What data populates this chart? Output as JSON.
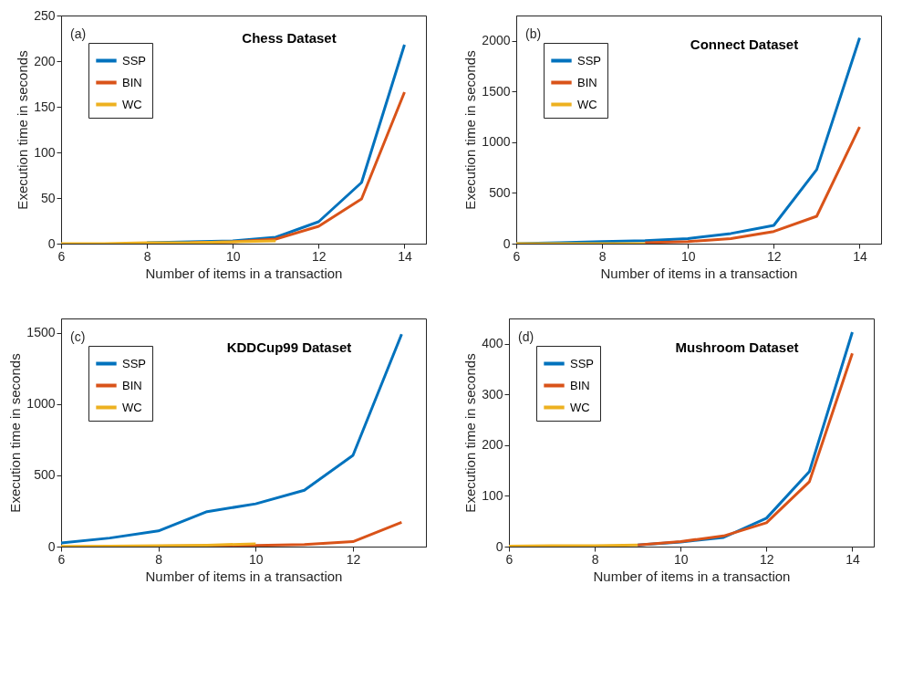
{
  "chart_data": [
    {
      "type": "line",
      "title": "Chess Dataset",
      "annotations": [
        "(a)"
      ],
      "xlabel": "Number of items in a transaction",
      "ylabel": "Execution time in seconds",
      "xlim": [
        6,
        14.5
      ],
      "xticks": [
        6,
        8,
        10,
        12,
        14
      ],
      "ylim": [
        0,
        250
      ],
      "yticks": [
        0,
        50,
        100,
        150,
        200,
        250
      ],
      "legend": "top left",
      "series": [
        {
          "name": "SSP",
          "color": "#0072bd",
          "x": [
            8,
            9,
            10,
            11,
            12,
            13,
            14
          ],
          "values": [
            1,
            2,
            3,
            7,
            24,
            67,
            218
          ]
        },
        {
          "name": "BIN",
          "color": "#d95319",
          "x": [
            9,
            10,
            11,
            12,
            13,
            14
          ],
          "values": [
            1,
            2,
            5,
            19,
            49,
            166
          ]
        },
        {
          "name": "WC",
          "color": "#edb120",
          "x": [
            6,
            7,
            8,
            9,
            10,
            11
          ],
          "values": [
            0,
            0,
            1,
            1,
            2,
            3
          ]
        }
      ]
    },
    {
      "type": "line",
      "title": "Connect Dataset",
      "annotations": [
        "(b)"
      ],
      "xlabel": "Number of items in a transaction",
      "ylabel": "Execution time in seconds",
      "xlim": [
        6,
        14.5
      ],
      "xticks": [
        6,
        8,
        10,
        12,
        14
      ],
      "ylim": [
        0,
        2250
      ],
      "yticks": [
        0,
        500,
        1000,
        1500,
        2000
      ],
      "legend": "top left",
      "series": [
        {
          "name": "SSP",
          "color": "#0072bd",
          "x": [
            6,
            7,
            8,
            9,
            10,
            11,
            12,
            13,
            14
          ],
          "values": [
            0,
            10,
            20,
            30,
            50,
            100,
            180,
            730,
            2030
          ]
        },
        {
          "name": "BIN",
          "color": "#d95319",
          "x": [
            9,
            10,
            11,
            12,
            13,
            14
          ],
          "values": [
            10,
            20,
            50,
            120,
            270,
            1150
          ]
        },
        {
          "name": "WC",
          "color": "#edb120",
          "x": [
            6,
            7,
            8,
            9
          ],
          "values": [
            0,
            0,
            0,
            0
          ]
        }
      ]
    },
    {
      "type": "line",
      "title": "KDDCup99 Dataset",
      "annotations": [
        "(c)"
      ],
      "xlabel": "Number of items in a transaction",
      "ylabel": "Execution time in seconds",
      "xlim": [
        6,
        13.5
      ],
      "xticks": [
        6,
        8,
        10,
        12
      ],
      "ylim": [
        0,
        1600
      ],
      "yticks": [
        0,
        500,
        1000,
        1500
      ],
      "legend": "top left",
      "series": [
        {
          "name": "SSP",
          "color": "#0072bd",
          "x": [
            6,
            7,
            8,
            9,
            10,
            11,
            12,
            13
          ],
          "values": [
            25,
            60,
            110,
            245,
            300,
            395,
            640,
            1490
          ]
        },
        {
          "name": "BIN",
          "color": "#d95319",
          "x": [
            8,
            9,
            10,
            11,
            12,
            13
          ],
          "values": [
            4,
            5,
            8,
            15,
            35,
            170
          ]
        },
        {
          "name": "WC",
          "color": "#edb120",
          "x": [
            6,
            7,
            8,
            9,
            10
          ],
          "values": [
            2,
            4,
            6,
            10,
            20
          ]
        }
      ]
    },
    {
      "type": "line",
      "title": "Mushroom Dataset",
      "annotations": [
        "(d)"
      ],
      "xlabel": "Number of items in a transaction",
      "ylabel": "Execution time in seconds",
      "xlim": [
        6,
        14.5
      ],
      "xticks": [
        6,
        8,
        10,
        12,
        14
      ],
      "ylim": [
        0,
        450
      ],
      "yticks": [
        0,
        100,
        200,
        300,
        400
      ],
      "legend": "top left",
      "series": [
        {
          "name": "SSP",
          "color": "#0072bd",
          "x": [
            9,
            10,
            11,
            12,
            13,
            14
          ],
          "values": [
            3,
            9,
            18,
            56,
            148,
            423
          ]
        },
        {
          "name": "BIN",
          "color": "#d95319",
          "x": [
            9,
            10,
            11,
            12,
            13,
            14
          ],
          "values": [
            3,
            10,
            21,
            47,
            128,
            381
          ]
        },
        {
          "name": "WC",
          "color": "#edb120",
          "x": [
            6,
            7,
            8,
            9
          ],
          "values": [
            1,
            2,
            2,
            3
          ]
        }
      ]
    }
  ]
}
